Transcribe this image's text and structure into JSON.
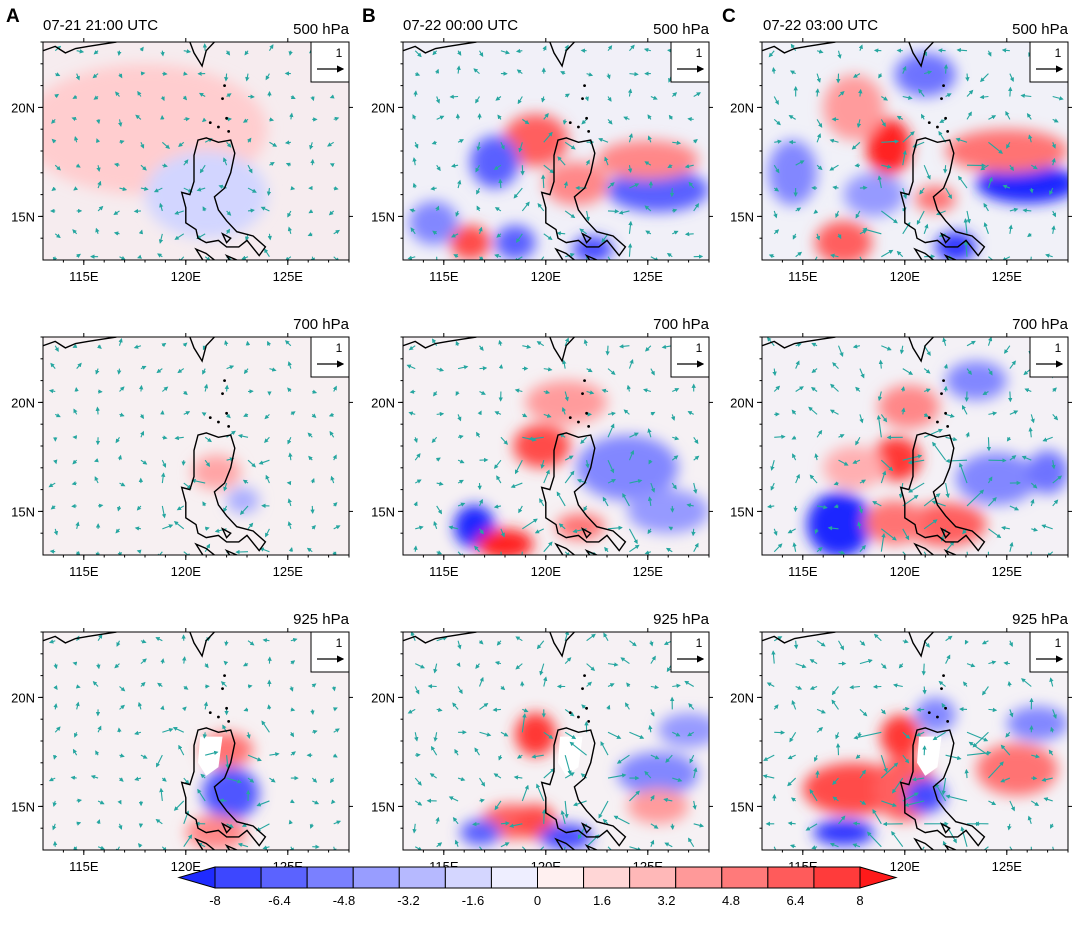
{
  "figure": {
    "panel_letters": [
      "A",
      "B",
      "C"
    ],
    "times": [
      "07-21 21:00 UTC",
      "07-22 00:00 UTC",
      "07-22 03:00 UTC"
    ],
    "levels": [
      "500 hPa",
      "700 hPa",
      "925 hPa"
    ],
    "x_ticks": [
      "115E",
      "120E",
      "125E"
    ],
    "y_ticks": [
      "20N",
      "15N"
    ],
    "reference_vector_label": "1"
  },
  "colorbar": {
    "labels": [
      "-8",
      "-6.4",
      "-4.8",
      "-3.2",
      "-1.6",
      "0",
      "1.6",
      "3.2",
      "4.8",
      "6.4",
      "8"
    ],
    "colors": [
      "#1f2bff",
      "#3d47ff",
      "#5b63ff",
      "#7a80ff",
      "#989dff",
      "#b6b9ff",
      "#d4d6ff",
      "#eeeeff",
      "#fff0f0",
      "#ffd6d6",
      "#ffb8b8",
      "#ff9999",
      "#ff7a7a",
      "#ff5b5b",
      "#ff3b3b",
      "#ff1a1a"
    ]
  },
  "colors": {
    "vector": "#26a6a0",
    "coast": "#000000"
  }
}
